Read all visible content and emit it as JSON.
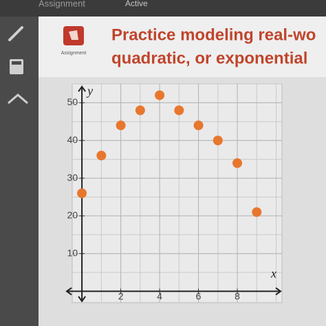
{
  "top_bar": {
    "tab": "Assignment",
    "status": "Active"
  },
  "header": {
    "icon_label": "Assignment",
    "title_line_1": "Practice modeling real-wo",
    "title_line_2": "quadratic, or exponential"
  },
  "chart_data": {
    "type": "scatter",
    "x_label": "x",
    "y_label": "y",
    "x": [
      0,
      1,
      2,
      3,
      4,
      5,
      6,
      7,
      8,
      9
    ],
    "values": [
      26,
      36,
      44,
      48,
      52,
      48,
      44,
      40,
      34,
      21
    ],
    "color": "#e8772e",
    "xlim": [
      -0.5,
      10.3
    ],
    "ylim": [
      -3,
      55
    ],
    "xticks": [
      2,
      4,
      6,
      8
    ],
    "yticks": [
      10,
      20,
      30,
      40,
      50
    ],
    "grid": true
  }
}
